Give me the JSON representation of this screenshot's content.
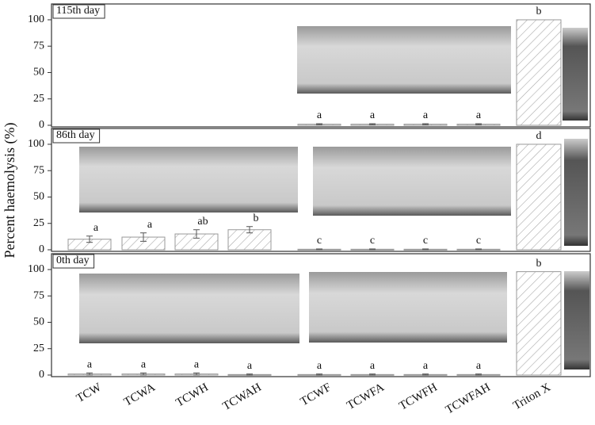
{
  "y_label": "Percent haemolysis (%)",
  "categories": [
    "TCW",
    "TCWA",
    "TCWH",
    "TCWAH",
    "TCWF",
    "TCWFA",
    "TCWFH",
    "TCWFAH",
    "Triton X"
  ],
  "chart_data": [
    {
      "type": "bar",
      "title": "115th day",
      "values": [
        null,
        null,
        null,
        null,
        1,
        1,
        1,
        1,
        100
      ],
      "errors": [
        null,
        null,
        null,
        null,
        0.5,
        0.5,
        0.5,
        0.5,
        null
      ],
      "labels": [
        null,
        null,
        null,
        null,
        "a",
        "a",
        "a",
        "a",
        "b"
      ],
      "ylim": [
        0,
        115
      ],
      "yticks": [
        0,
        25,
        50,
        75,
        100
      ]
    },
    {
      "type": "bar",
      "title": "86th day",
      "values": [
        10,
        12,
        15,
        19,
        0.5,
        0.5,
        0.5,
        0.5,
        100
      ],
      "errors": [
        3,
        4,
        4,
        3,
        0.3,
        0.3,
        0.3,
        0.3,
        null
      ],
      "labels": [
        "a",
        "a",
        "ab",
        "b",
        "c",
        "c",
        "c",
        "c",
        "d"
      ],
      "ylim": [
        0,
        115
      ],
      "yticks": [
        0,
        25,
        50,
        75,
        100
      ]
    },
    {
      "type": "bar",
      "title": "0th day",
      "values": [
        1,
        1,
        1,
        0.5,
        0.5,
        0.5,
        0.5,
        0.5,
        98
      ],
      "errors": [
        1,
        1,
        1,
        0.5,
        0.5,
        0.5,
        0.5,
        0.5,
        null
      ],
      "labels": [
        "a",
        "a",
        "a",
        "a",
        "a",
        "a",
        "a",
        "a",
        "b"
      ],
      "ylim": [
        0,
        115
      ],
      "yticks": [
        0,
        25,
        50,
        75,
        100
      ]
    }
  ]
}
